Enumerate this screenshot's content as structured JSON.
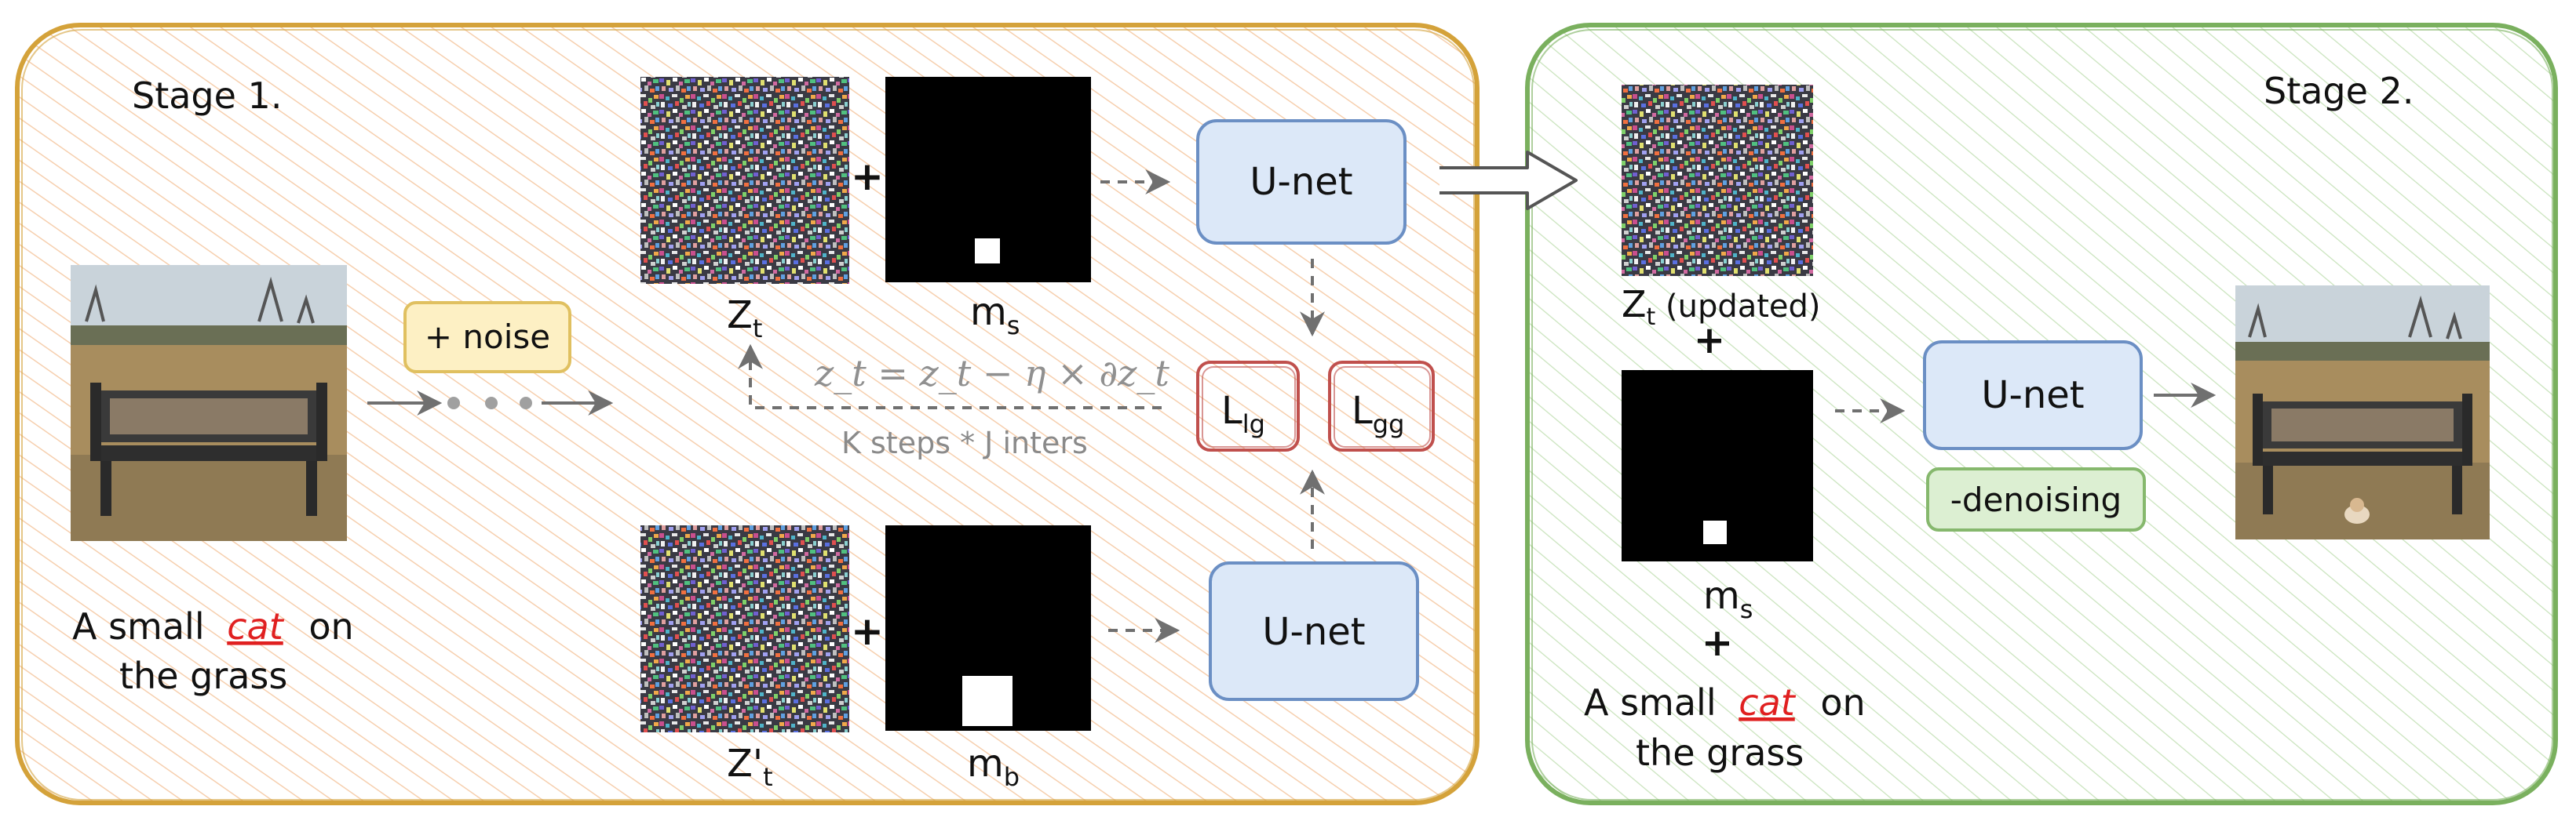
{
  "stage1": {
    "title": "Stage 1.",
    "noise_label": "+ noise",
    "prompt": {
      "prefix": "A small",
      "highlight": "cat",
      "suffix": "on",
      "line2": "the grass"
    },
    "latent_top_label": "Z",
    "latent_top_sub": "t",
    "mask_small_label": "m",
    "mask_small_sub": "s",
    "latent_bottom_label": "Z'",
    "latent_bottom_sub": "t",
    "mask_big_label": "m",
    "mask_big_sub": "b",
    "unet_top": "U-net",
    "unet_bottom": "U-net",
    "update_formula": "z_t = z_t − η × ∂z_t",
    "steps_label": "K steps * J inters",
    "loss_lg": {
      "main": "L",
      "sub": "lg"
    },
    "loss_gg": {
      "main": "L",
      "sub": "gg"
    },
    "plus": "+"
  },
  "stage2": {
    "title": "Stage 2.",
    "latent_label": "Z",
    "latent_sub": "t",
    "latent_suffix": " (updated)",
    "plus": "+",
    "mask_label": "m",
    "mask_sub": "s",
    "unet": "U-net",
    "denoise_label": "-denoising",
    "prompt": {
      "prefix": "A small",
      "highlight": "cat",
      "suffix": "on",
      "line2": "the grass"
    }
  },
  "colors": {
    "stage1_border": "#d4a23a",
    "stage1_hatch": "#f6cfae",
    "stage2_border": "#7ab05e",
    "stage2_hatch": "#c9e3bc",
    "unet_fill": "#dce8f8",
    "unet_stroke": "#6b8fc4",
    "noise_fill": "#fdf0c4",
    "noise_stroke": "#e0c060",
    "loss_stroke": "#c0504d",
    "denoise_fill": "#dcefd2",
    "denoise_stroke": "#86b86d",
    "highlight": "#e02020",
    "arrow": "#707070"
  }
}
